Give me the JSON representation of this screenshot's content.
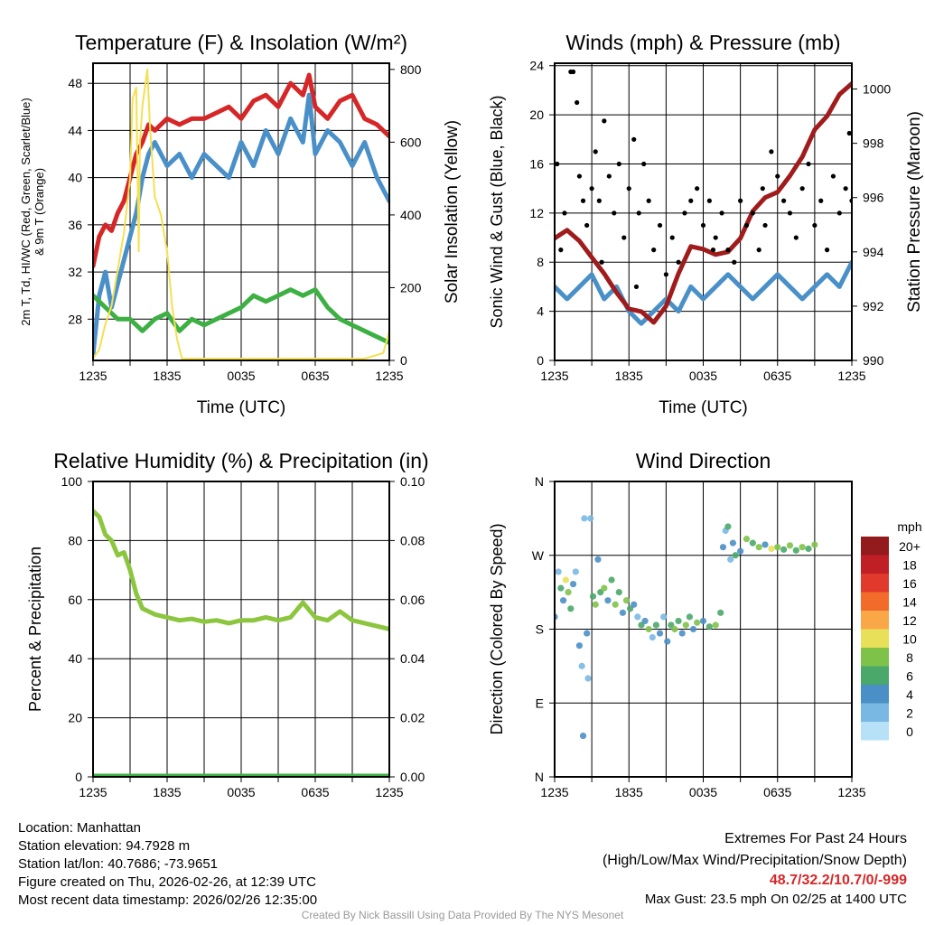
{
  "chart_data": [
    {
      "type": "line",
      "title": "Temperature (F) & Insolation (W/m²)",
      "xlabel": "Time (UTC)",
      "ylabel": "2m T, Td, HI/WC (Red, Green, Scarlet/Blue) & 9m T (Orange)",
      "ylabel2": "Solar Insolation (Yellow)",
      "x_ticks": [
        "1235",
        "1835",
        "0035",
        "0635",
        "1235"
      ],
      "ylim": [
        24.5,
        49.7
      ],
      "y_ticks": [
        28,
        32,
        36,
        40,
        44,
        48
      ],
      "ylim2": [
        0,
        817
      ],
      "y2_ticks": [
        0,
        200,
        400,
        600,
        800
      ],
      "series": [
        {
          "name": "2m T",
          "color": "#d62728",
          "axis": "left",
          "x": [
            0,
            0.5,
            1,
            1.5,
            2,
            2.5,
            3,
            3.5,
            4,
            4.5,
            5,
            6,
            7,
            8,
            9,
            10,
            11,
            12,
            13,
            14,
            15,
            16,
            17,
            17.5,
            18,
            19,
            20,
            21,
            22,
            23,
            24
          ],
          "y": [
            32.5,
            35,
            36,
            35.5,
            37,
            38,
            40,
            42,
            43,
            44.5,
            44,
            45,
            44.5,
            45,
            45,
            45.5,
            46,
            45,
            46.5,
            47,
            46,
            48,
            47,
            48.7,
            46,
            45,
            46.5,
            47,
            45,
            44.5,
            43.5
          ]
        },
        {
          "name": "HI/WC",
          "color": "#4a90c8",
          "axis": "left",
          "x": [
            0,
            0.5,
            1,
            1.5,
            2,
            2.5,
            3,
            3.5,
            4,
            4.5,
            5,
            6,
            7,
            8,
            9,
            10,
            11,
            12,
            13,
            14,
            15,
            16,
            17,
            17.5,
            18,
            19,
            20,
            21,
            22,
            23,
            24
          ],
          "y": [
            25,
            30,
            32,
            29,
            31,
            33,
            35,
            37,
            40,
            42,
            43,
            41,
            42,
            40,
            42,
            41,
            40,
            43,
            41,
            44,
            42,
            45,
            43,
            47,
            42,
            44,
            43,
            41,
            43,
            40,
            38
          ]
        },
        {
          "name": "Td",
          "color": "#3cb043",
          "axis": "left",
          "x": [
            0,
            1,
            2,
            3,
            4,
            5,
            6,
            7,
            8,
            9,
            10,
            11,
            12,
            13,
            14,
            15,
            16,
            17,
            18,
            19,
            20,
            21,
            22,
            23,
            24
          ],
          "y": [
            30,
            29,
            28,
            28,
            27,
            28,
            28.5,
            27,
            28,
            27.5,
            28,
            28.5,
            29,
            30,
            29.5,
            30,
            30.5,
            30,
            30.5,
            29,
            28,
            27.5,
            27,
            26.5,
            26
          ]
        },
        {
          "name": "Insolation",
          "color": "#f5e050",
          "axis": "right",
          "x": [
            0,
            0.5,
            1,
            1.5,
            2,
            2.5,
            3,
            3.2,
            3.5,
            3.7,
            3.8,
            4,
            4.4,
            4.6,
            5,
            5.5,
            6,
            6.4,
            6.8,
            7.2,
            22,
            23.5,
            24
          ],
          "y": [
            5,
            30,
            100,
            150,
            250,
            350,
            500,
            720,
            750,
            300,
            600,
            700,
            800,
            650,
            450,
            400,
            300,
            150,
            60,
            5,
            5,
            20,
            80
          ]
        }
      ]
    },
    {
      "type": "line",
      "title": "Winds (mph) & Pressure (mb)",
      "xlabel": "Time (UTC)",
      "ylabel": "Sonic Wind & Gust (Blue, Black)",
      "ylabel2": "Station Pressure (Maroon)",
      "x_ticks": [
        "1235",
        "1835",
        "0035",
        "0635",
        "1235"
      ],
      "ylim": [
        0,
        24.2
      ],
      "y_ticks": [
        0,
        4,
        8,
        12,
        16,
        20,
        24
      ],
      "ylim2": [
        990,
        1000.95
      ],
      "y2_ticks": [
        990,
        992,
        994,
        996,
        998,
        1000
      ],
      "series": [
        {
          "name": "Sonic Wind",
          "color": "#4a90c8",
          "axis": "left",
          "x": [
            0,
            1,
            2,
            3,
            4,
            5,
            6,
            7,
            8,
            9,
            10,
            11,
            12,
            13,
            14,
            15,
            16,
            17,
            18,
            19,
            20,
            21,
            22,
            23,
            24
          ],
          "y": [
            6,
            5,
            6,
            7,
            5,
            6,
            4,
            3,
            4,
            5,
            4,
            6,
            5,
            6,
            7,
            6,
            5,
            6,
            7,
            6,
            5,
            6,
            7,
            6,
            8
          ]
        },
        {
          "name": "Pressure",
          "color": "#a01c1c",
          "axis": "right",
          "x": [
            0,
            1,
            2,
            3,
            4,
            5,
            6,
            7,
            8,
            9,
            10,
            11,
            12,
            13,
            14,
            15,
            16,
            17,
            18,
            19,
            20,
            21,
            22,
            23,
            24
          ],
          "y": [
            994.5,
            994.8,
            994.4,
            993.8,
            993.2,
            992.5,
            991.9,
            991.8,
            991.4,
            992,
            993.2,
            994.2,
            994.1,
            993.9,
            994,
            994.5,
            995.5,
            996,
            996.2,
            996.8,
            997.5,
            998.5,
            999,
            999.8,
            1000.2
          ]
        },
        {
          "name": "Gust",
          "color": "#000000",
          "axis": "left",
          "type": "scatter",
          "points": [
            [
              0.2,
              16
            ],
            [
              0.5,
              9
            ],
            [
              1.3,
              23.5
            ],
            [
              1.5,
              23.5
            ],
            [
              1.8,
              21
            ],
            [
              2,
              15
            ],
            [
              2.3,
              13
            ],
            [
              2.6,
              11
            ],
            [
              3,
              14
            ],
            [
              3.3,
              17
            ],
            [
              3.6,
              13
            ],
            [
              4,
              19.5
            ],
            [
              4.4,
              15
            ],
            [
              4.8,
              12
            ],
            [
              5.2,
              16
            ],
            [
              5.6,
              10
            ],
            [
              6,
              14
            ],
            [
              6.4,
              18
            ],
            [
              6.8,
              12
            ],
            [
              7.2,
              16
            ],
            [
              7.6,
              13
            ],
            [
              8,
              9
            ],
            [
              8.5,
              11
            ],
            [
              9,
              7
            ],
            [
              9.5,
              10
            ],
            [
              10,
              8
            ],
            [
              10.5,
              12
            ],
            [
              11,
              13
            ],
            [
              11.5,
              14
            ],
            [
              12,
              11
            ],
            [
              12.5,
              13
            ],
            [
              13,
              10
            ],
            [
              13.5,
              12
            ],
            [
              14,
              9
            ],
            [
              14.5,
              8
            ],
            [
              15,
              13
            ],
            [
              15.5,
              11
            ],
            [
              16,
              12
            ],
            [
              16.5,
              9
            ],
            [
              17,
              11
            ],
            [
              17.5,
              17
            ],
            [
              18,
              15
            ],
            [
              18.5,
              13
            ],
            [
              19,
              12
            ],
            [
              19.5,
              10
            ],
            [
              20,
              14
            ],
            [
              20.5,
              16
            ],
            [
              21,
              11
            ],
            [
              21.5,
              13
            ],
            [
              22,
              9
            ],
            [
              22.5,
              15
            ],
            [
              23,
              12
            ],
            [
              23.5,
              14
            ],
            [
              23.8,
              18.5
            ],
            [
              24,
              13
            ],
            [
              0.8,
              12
            ],
            [
              3.8,
              8
            ],
            [
              6.6,
              6
            ],
            [
              12.8,
              9
            ],
            [
              16.8,
              14
            ]
          ]
        }
      ]
    },
    {
      "type": "line",
      "title": "Relative Humidity (%) & Precipitation (in)",
      "ylabel": "Percent & Precipitation",
      "x_ticks": [
        "1235",
        "1835",
        "0035",
        "0635",
        "1235"
      ],
      "ylim": [
        0,
        100
      ],
      "y_ticks": [
        0,
        20,
        40,
        60,
        80,
        100
      ],
      "ylim2": [
        0,
        0.1
      ],
      "y2_ticks": [
        "0.00",
        "0.02",
        "0.04",
        "0.06",
        "0.08",
        "0.10"
      ],
      "series": [
        {
          "name": "RH",
          "color": "#8cc63f",
          "axis": "left",
          "x": [
            0,
            0.5,
            1,
            1.5,
            2,
            2.5,
            3,
            3.5,
            4,
            5,
            6,
            7,
            8,
            9,
            10,
            11,
            12,
            13,
            14,
            15,
            16,
            17,
            18,
            19,
            20,
            21,
            22,
            23,
            24
          ],
          "y": [
            90,
            88,
            82,
            80,
            75,
            76,
            70,
            62,
            57,
            55,
            54,
            53,
            53.5,
            52.5,
            53,
            52,
            53,
            53,
            54,
            53,
            54,
            59,
            54,
            53,
            56,
            53,
            52,
            51,
            50
          ]
        },
        {
          "name": "Precipitation",
          "color": "#3cb043",
          "axis": "right",
          "x": [
            0,
            24
          ],
          "y": [
            0,
            0
          ]
        }
      ]
    },
    {
      "type": "scatter",
      "title": "Wind Direction",
      "ylabel": "Direction (Colored By Speed)",
      "x_ticks": [
        "1235",
        "1835",
        "0035",
        "0635",
        "1235"
      ],
      "ylim": [
        0,
        360
      ],
      "y_ticks": [
        "N",
        "E",
        "S",
        "W",
        "N"
      ],
      "legend": {
        "title": "mph",
        "labels": [
          "20+",
          "18",
          "16",
          "14",
          "12",
          "10",
          "8",
          "6",
          "4",
          "2",
          "0"
        ],
        "colors": [
          "#931a1d",
          "#c11f26",
          "#e13a2c",
          "#f26b2a",
          "#f9a747",
          "#e9e05a",
          "#7fc24a",
          "#4aa86a",
          "#4a8fc6",
          "#7ab8e4",
          "#b7e1f7"
        ],
        "position": "right"
      },
      "points": [
        [
          0,
          195,
          4
        ],
        [
          0.3,
          250,
          2
        ],
        [
          0.5,
          230,
          6
        ],
        [
          0.7,
          215,
          4
        ],
        [
          0.9,
          240,
          10
        ],
        [
          1.1,
          225,
          8
        ],
        [
          1.3,
          205,
          6
        ],
        [
          1.5,
          235,
          4
        ],
        [
          1.7,
          250,
          2
        ],
        [
          2,
          160,
          4
        ],
        [
          2.2,
          135,
          2
        ],
        [
          2.3,
          50,
          4
        ],
        [
          2.4,
          315,
          2
        ],
        [
          2.6,
          175,
          4
        ],
        [
          2.7,
          120,
          2
        ],
        [
          2.9,
          315,
          2
        ],
        [
          3.1,
          220,
          6
        ],
        [
          3.3,
          210,
          8
        ],
        [
          3.5,
          265,
          4
        ],
        [
          3.7,
          225,
          6
        ],
        [
          4,
          230,
          8
        ],
        [
          4.3,
          215,
          4
        ],
        [
          4.6,
          240,
          6
        ],
        [
          4.9,
          210,
          8
        ],
        [
          5.2,
          225,
          6
        ],
        [
          5.5,
          200,
          4
        ],
        [
          5.8,
          215,
          8
        ],
        [
          6.1,
          205,
          6
        ],
        [
          6.4,
          210,
          4
        ],
        [
          6.7,
          195,
          2
        ],
        [
          7,
          185,
          6
        ],
        [
          7.3,
          190,
          4
        ],
        [
          7.6,
          180,
          8
        ],
        [
          7.9,
          170,
          2
        ],
        [
          8.2,
          185,
          6
        ],
        [
          8.5,
          175,
          4
        ],
        [
          8.8,
          195,
          2
        ],
        [
          9.1,
          165,
          4
        ],
        [
          9.4,
          185,
          6
        ],
        [
          9.7,
          180,
          8
        ],
        [
          10,
          190,
          6
        ],
        [
          10.3,
          175,
          4
        ],
        [
          10.6,
          185,
          8
        ],
        [
          10.9,
          195,
          6
        ],
        [
          11.2,
          180,
          4
        ],
        [
          11.5,
          188,
          8
        ],
        [
          12,
          190,
          4
        ],
        [
          12.5,
          183,
          6
        ],
        [
          13,
          185,
          8
        ],
        [
          13.4,
          200,
          6
        ],
        [
          13.6,
          280,
          4
        ],
        [
          13.8,
          300,
          2
        ],
        [
          14,
          305,
          6
        ],
        [
          14.2,
          265,
          2
        ],
        [
          14.4,
          285,
          4
        ],
        [
          14.6,
          270,
          6
        ],
        [
          15,
          275,
          4
        ],
        [
          15.5,
          290,
          8
        ],
        [
          16,
          285,
          6
        ],
        [
          16.5,
          280,
          8
        ],
        [
          17,
          283,
          4
        ],
        [
          17.5,
          278,
          10
        ],
        [
          18,
          280,
          8
        ],
        [
          18.5,
          277,
          6
        ],
        [
          19,
          282,
          8
        ],
        [
          19.5,
          276,
          6
        ],
        [
          20,
          280,
          8
        ],
        [
          20.5,
          278,
          6
        ],
        [
          21,
          283,
          8
        ]
      ]
    }
  ],
  "info": {
    "location": "Location: Manhattan",
    "elevation": "Station elevation: 94.7928 m",
    "latlon": "Station lat/lon: 40.7686; -73.9651",
    "created": "Figure created on Thu, 2026-02-26, at 12:39 UTC",
    "recent": "Most recent data timestamp: 2026/02/26 12:35:00"
  },
  "extremes": {
    "title": "Extremes For Past 24 Hours",
    "subtitle": "(High/Low/Max Wind/Precipitation/Snow Depth)",
    "values": "48.7/32.2/10.7/0/-999",
    "gust": "Max Gust: 23.5 mph On 02/25 at 1400 UTC"
  },
  "credit": "Created By Nick Bassill Using Data Provided By The NYS Mesonet"
}
